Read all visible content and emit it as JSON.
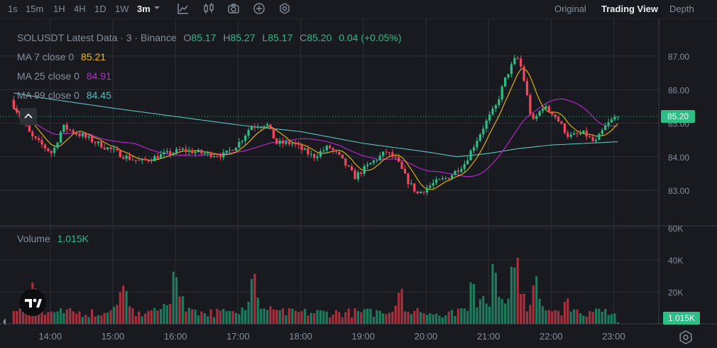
{
  "toolbar": {
    "timeframes": [
      "1s",
      "15m",
      "1H",
      "4H",
      "1D",
      "1W",
      "3m"
    ],
    "active_timeframe": "3m",
    "icons": [
      "line-tools-icon",
      "candle-type-icon",
      "camera-icon",
      "add-indicator-icon",
      "settings-icon"
    ],
    "views": [
      "Original",
      "Trading View",
      "Depth"
    ],
    "active_view": "Trading View"
  },
  "legend": {
    "title": "SOLUSDT Latest Data · 3 · Binance",
    "o_label": "O",
    "o_value": "85.17",
    "h_label": "H",
    "h_value": "85.27",
    "l_label": "L",
    "l_value": "85.17",
    "c_label": "C",
    "c_value": "85.20",
    "change": "0.04 (+0.05%)",
    "ma7_label": "MA 7 close 0",
    "ma7_value": "85.21",
    "ma25_label": "MA 25 close 0",
    "ma25_value": "84.91",
    "ma99_label": "MA 99 close 0",
    "ma99_value": "84.45",
    "volume_label": "Volume",
    "volume_value": "1.015K"
  },
  "price_badge": "85.20",
  "volume_badge": "1.015K",
  "colors": {
    "up": "#2ebd85",
    "down": "#f6465d",
    "ma7": "#f0b90b",
    "ma25": "#c026d3",
    "ma99": "#5bc0be",
    "background": "#181a20",
    "grid": "#2b2f36"
  },
  "chart_data": {
    "type": "candlestick",
    "symbol": "SOLUSDT",
    "exchange": "Binance",
    "interval": "3m",
    "x_ticks": [
      "14:00",
      "15:00",
      "16:00",
      "17:00",
      "18:00",
      "19:00",
      "20:00",
      "21:00",
      "22:00",
      "23:00"
    ],
    "price_ticks": [
      83.0,
      84.0,
      85.0,
      86.0,
      87.0
    ],
    "price_ylim": [
      82.2,
      88.0
    ],
    "volume_ticks": [
      "20K",
      "40K",
      "60K"
    ],
    "volume_ylim": [
      0,
      62000
    ],
    "last_price": 85.2,
    "last_volume": 1015,
    "price_keypoints": [
      {
        "t": "13:25",
        "p": 85.7
      },
      {
        "t": "13:45",
        "p": 84.6
      },
      {
        "t": "14:05",
        "p": 84.1
      },
      {
        "t": "14:15",
        "p": 84.9
      },
      {
        "t": "14:35",
        "p": 84.6
      },
      {
        "t": "14:55",
        "p": 84.3
      },
      {
        "t": "15:15",
        "p": 84.0
      },
      {
        "t": "15:30",
        "p": 83.85
      },
      {
        "t": "15:50",
        "p": 84.05
      },
      {
        "t": "16:10",
        "p": 84.2
      },
      {
        "t": "16:30",
        "p": 84.1
      },
      {
        "t": "16:50",
        "p": 84.05
      },
      {
        "t": "17:05",
        "p": 84.45
      },
      {
        "t": "17:15",
        "p": 84.9
      },
      {
        "t": "17:30",
        "p": 85.0
      },
      {
        "t": "17:40",
        "p": 84.4
      },
      {
        "t": "17:55",
        "p": 84.4
      },
      {
        "t": "18:15",
        "p": 84.0
      },
      {
        "t": "18:30",
        "p": 84.3
      },
      {
        "t": "18:40",
        "p": 84.0
      },
      {
        "t": "18:55",
        "p": 83.4
      },
      {
        "t": "19:10",
        "p": 83.8
      },
      {
        "t": "19:25",
        "p": 84.15
      },
      {
        "t": "19:35",
        "p": 83.9
      },
      {
        "t": "19:45",
        "p": 83.3
      },
      {
        "t": "19:55",
        "p": 82.9
      },
      {
        "t": "20:10",
        "p": 83.2
      },
      {
        "t": "20:25",
        "p": 83.4
      },
      {
        "t": "20:40",
        "p": 83.8
      },
      {
        "t": "20:50",
        "p": 84.4
      },
      {
        "t": "21:00",
        "p": 85.0
      },
      {
        "t": "21:10",
        "p": 85.5
      },
      {
        "t": "21:20",
        "p": 86.4
      },
      {
        "t": "21:30",
        "p": 87.0
      },
      {
        "t": "21:35",
        "p": 86.6
      },
      {
        "t": "21:40",
        "p": 85.8
      },
      {
        "t": "21:45",
        "p": 85.0
      },
      {
        "t": "21:55",
        "p": 85.5
      },
      {
        "t": "22:05",
        "p": 85.3
      },
      {
        "t": "22:20",
        "p": 84.6
      },
      {
        "t": "22:35",
        "p": 84.7
      },
      {
        "t": "22:45",
        "p": 84.4
      },
      {
        "t": "22:55",
        "p": 84.9
      },
      {
        "t": "23:05",
        "p": 85.2
      }
    ],
    "ma99_keypoints": [
      {
        "t": "13:25",
        "p": 85.9
      },
      {
        "t": "14:00",
        "p": 85.72
      },
      {
        "t": "15:00",
        "p": 85.45
      },
      {
        "t": "16:00",
        "p": 85.2
      },
      {
        "t": "17:00",
        "p": 84.95
      },
      {
        "t": "18:00",
        "p": 84.75
      },
      {
        "t": "19:00",
        "p": 84.4
      },
      {
        "t": "20:00",
        "p": 84.15
      },
      {
        "t": "20:30",
        "p": 84.0
      },
      {
        "t": "21:00",
        "p": 84.1
      },
      {
        "t": "21:30",
        "p": 84.25
      },
      {
        "t": "22:00",
        "p": 84.35
      },
      {
        "t": "23:05",
        "p": 84.45
      }
    ],
    "volume_peaks": [
      {
        "t": "13:45",
        "v": 27000
      },
      {
        "t": "15:10",
        "v": 24000
      },
      {
        "t": "16:00",
        "v": 35000
      },
      {
        "t": "17:15",
        "v": 33000
      },
      {
        "t": "19:35",
        "v": 24000
      },
      {
        "t": "20:45",
        "v": 30000
      },
      {
        "t": "21:05",
        "v": 40000
      },
      {
        "t": "21:25",
        "v": 43000
      },
      {
        "t": "21:45",
        "v": 30000
      },
      {
        "t": "22:15",
        "v": 17000
      },
      {
        "t": "23:05",
        "v": 1015
      }
    ],
    "series": [
      {
        "name": "MA 7 close 0",
        "last": 85.21
      },
      {
        "name": "MA 25 close 0",
        "last": 84.91
      },
      {
        "name": "MA 99 close 0",
        "last": 84.45
      }
    ]
  }
}
